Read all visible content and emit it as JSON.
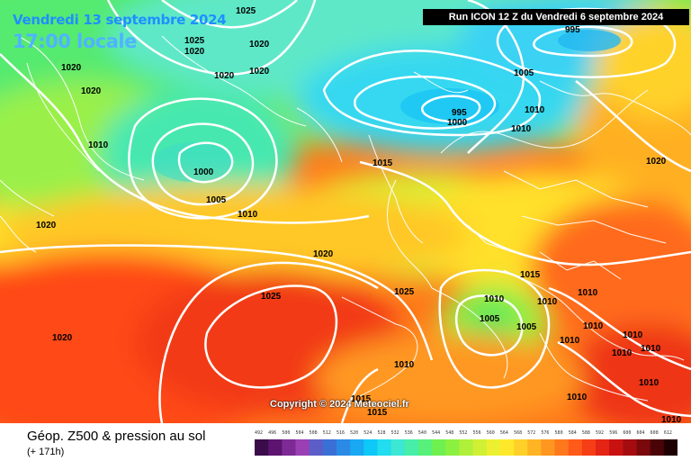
{
  "header": {
    "date": "Vendredi 13 septembre 2024",
    "time": "17:00 locale",
    "run": "Run ICON 12 Z du Vendredi 6 septembre 2024"
  },
  "copyright": "Copyright © 2024 Meteociel.fr",
  "footer": {
    "title": "Géop. Z500 & pression au sol",
    "subtitle": "(+ 171h)"
  },
  "scale": {
    "labels": [
      "492",
      "496",
      "500",
      "504",
      "508",
      "512",
      "516",
      "520",
      "524",
      "528",
      "532",
      "536",
      "540",
      "544",
      "548",
      "552",
      "556",
      "560",
      "564",
      "568",
      "572",
      "576",
      "580",
      "584",
      "588",
      "592",
      "596",
      "600",
      "604",
      "608",
      "612"
    ],
    "colors": [
      "#3a0d4a",
      "#5c1470",
      "#7e2a94",
      "#9a3fb4",
      "#5d5dc8",
      "#3a6fd6",
      "#2a8ae6",
      "#19a8f2",
      "#0ec8f8",
      "#22dcf0",
      "#3ce8d4",
      "#46eea8",
      "#56f07a",
      "#6ef050",
      "#8cf040",
      "#b0f03a",
      "#d0f034",
      "#ecf030",
      "#ffe82c",
      "#ffd028",
      "#ffb424",
      "#ff9620",
      "#ff781c",
      "#ff5a18",
      "#f53e16",
      "#e42414",
      "#c81212",
      "#a40c10",
      "#7a080c",
      "#4a0408",
      "#1e0002"
    ]
  },
  "isobars": [
    {
      "label": "1025"
    },
    {
      "label": "1025"
    },
    {
      "label": "1020"
    },
    {
      "label": "1020"
    },
    {
      "label": "1020"
    },
    {
      "label": "1020"
    },
    {
      "label": "1020"
    },
    {
      "label": "1010"
    },
    {
      "label": "1000"
    },
    {
      "label": "1005"
    },
    {
      "label": "1010"
    },
    {
      "label": "1020"
    },
    {
      "label": "1015"
    },
    {
      "label": "995"
    },
    {
      "label": "1000"
    },
    {
      "label": "1005"
    },
    {
      "label": "1010"
    },
    {
      "label": "1010"
    },
    {
      "label": "995"
    },
    {
      "label": "1020"
    },
    {
      "label": "1015"
    },
    {
      "label": "1020"
    },
    {
      "label": "1025"
    },
    {
      "label": "1025"
    },
    {
      "label": "1020"
    },
    {
      "label": "1020"
    },
    {
      "label": "1015"
    },
    {
      "label": "1015"
    },
    {
      "label": "1010"
    },
    {
      "label": "1010"
    },
    {
      "label": "1005"
    },
    {
      "label": "1005"
    },
    {
      "label": "1010"
    },
    {
      "label": "1010"
    },
    {
      "label": "1010"
    },
    {
      "label": "1010"
    },
    {
      "label": "1010"
    },
    {
      "label": "1010"
    },
    {
      "label": "1010"
    },
    {
      "label": "1010"
    },
    {
      "label": "1010"
    },
    {
      "label": "1010"
    },
    {
      "label": "1015"
    }
  ]
}
